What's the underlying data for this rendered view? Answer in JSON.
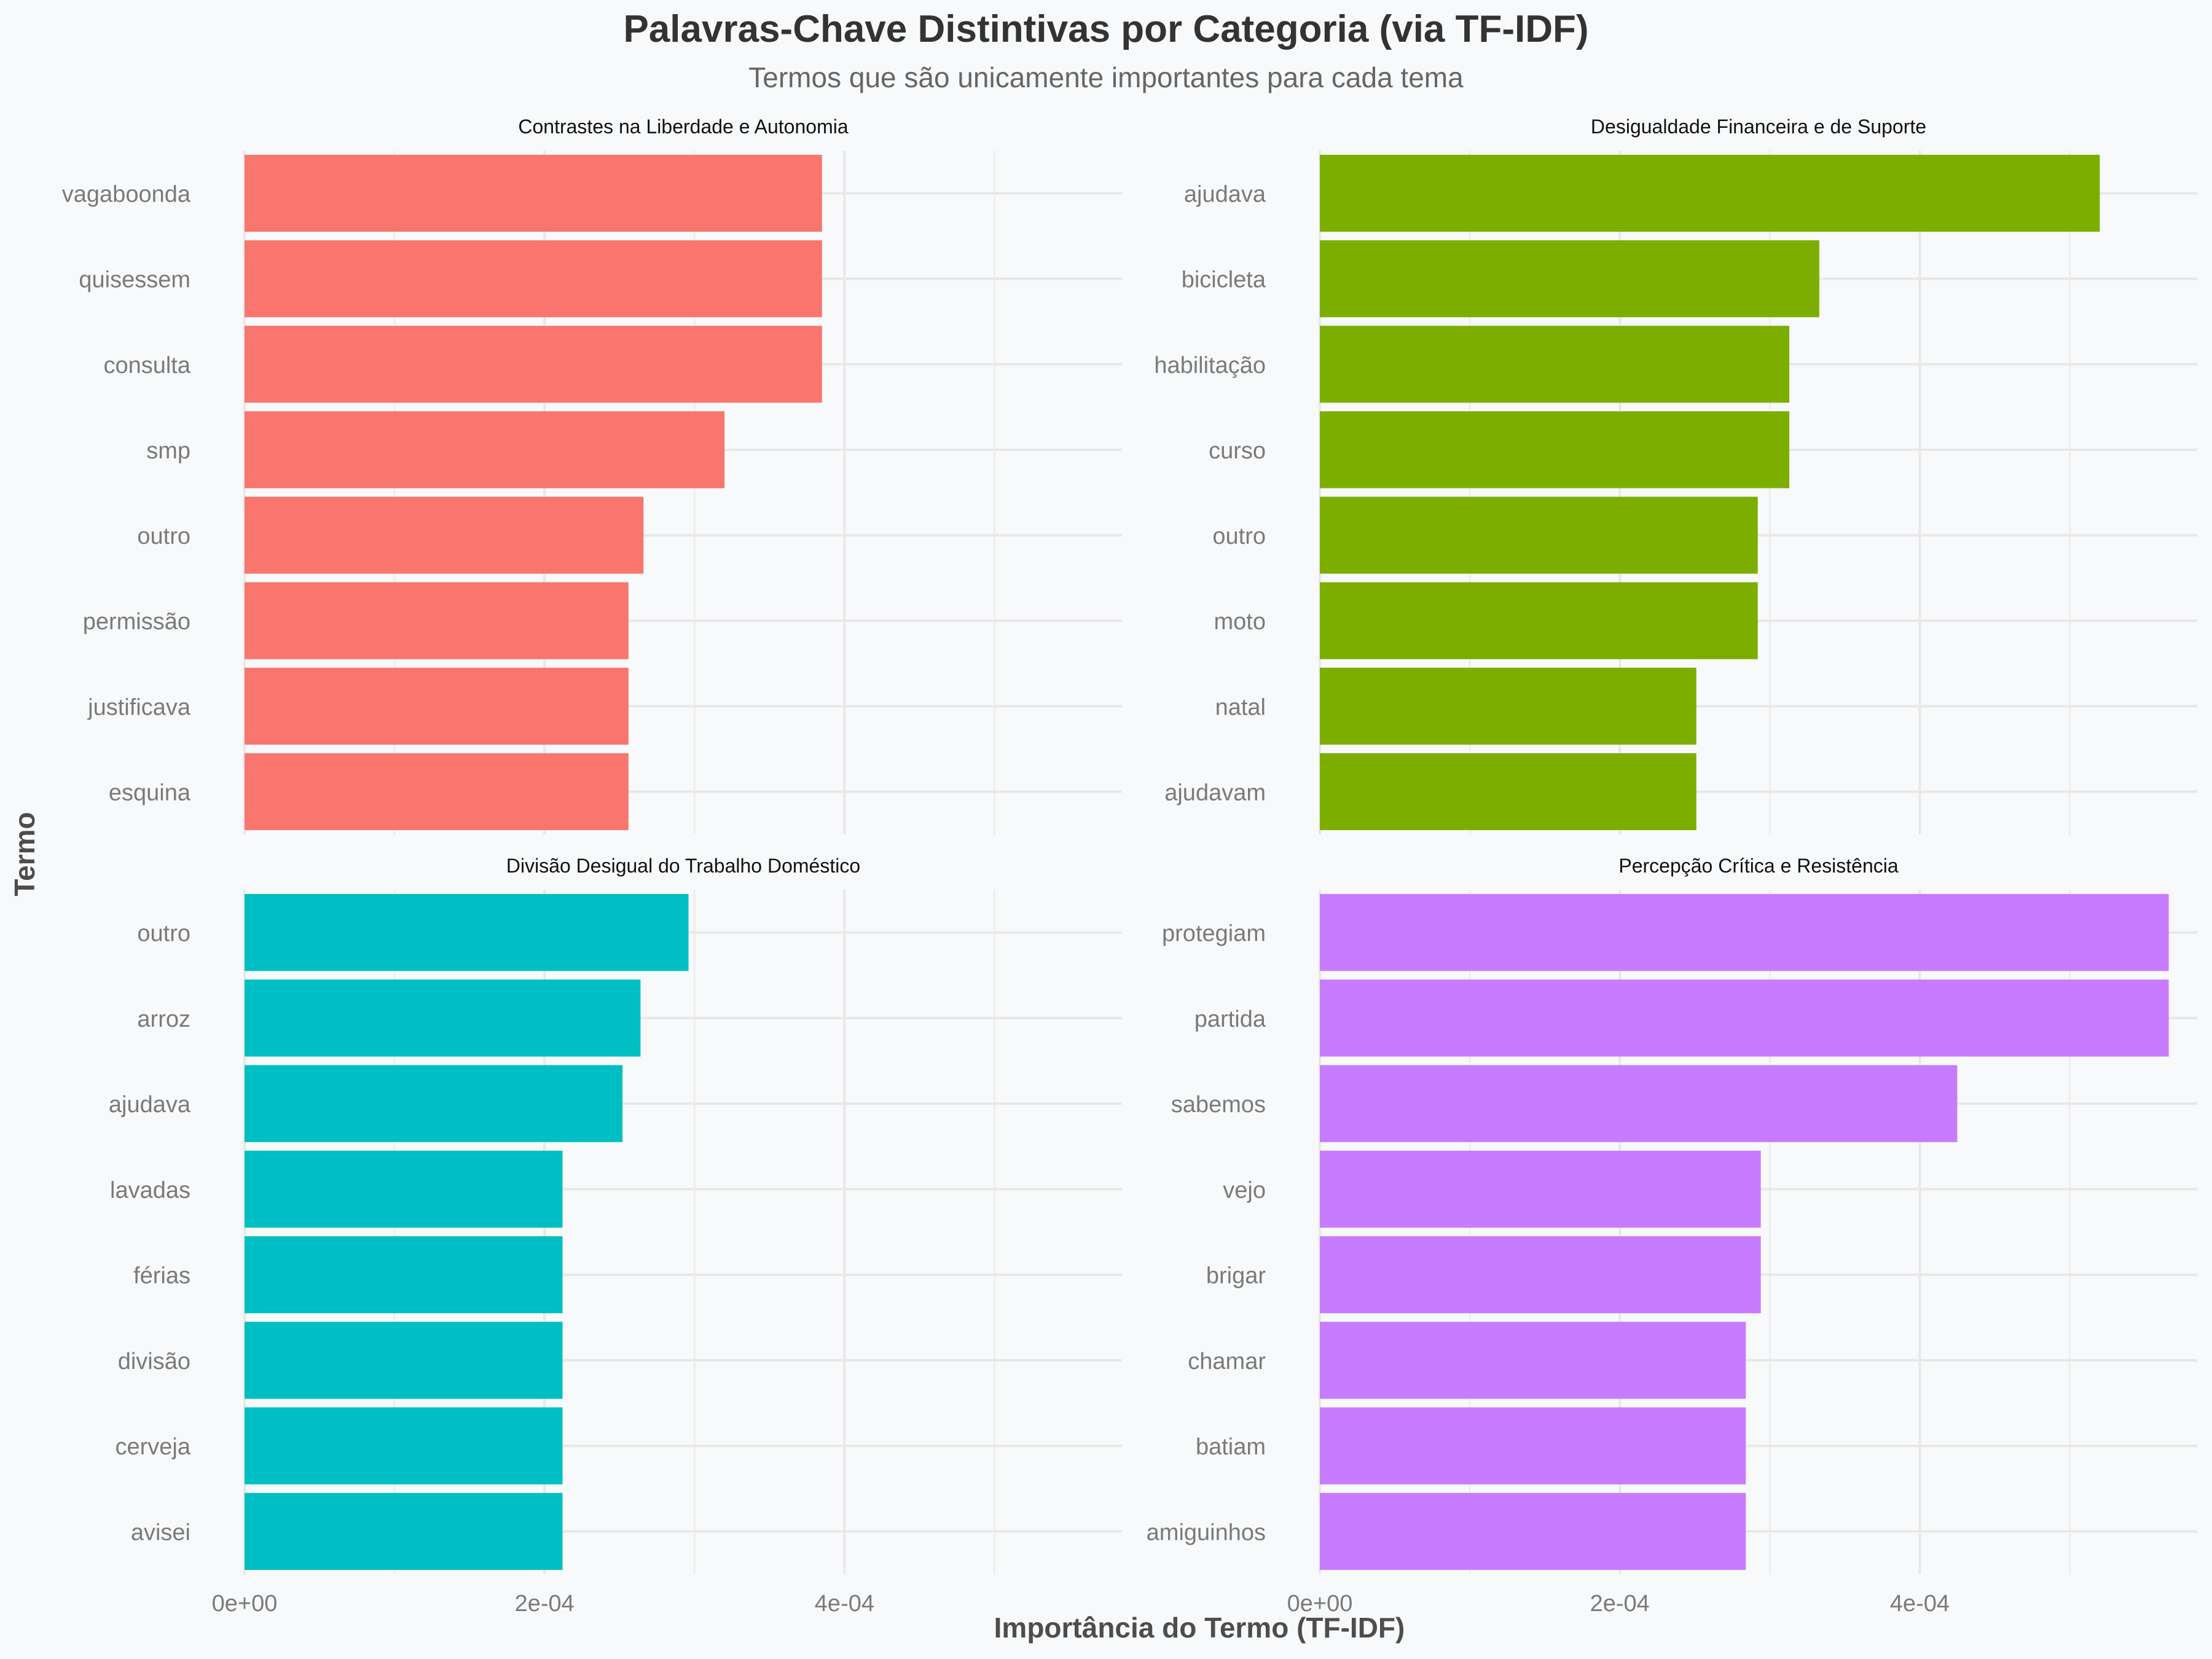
{
  "chart_data": {
    "type": "bar",
    "orientation": "horizontal",
    "title": "Palavras-Chave Distintivas por Categoria (via TF-IDF)",
    "subtitle": "Termos que são unicamente importantes para cada tema",
    "xlabel": "Importância do Termo (TF-IDF)",
    "ylabel": "Termo",
    "xlim": [
      0,
      0.000585
    ],
    "xticks": [
      0,
      0.0002,
      0.0004
    ],
    "xtick_labels": [
      "0e+00",
      "2e-04",
      "4e-04"
    ],
    "grid": true,
    "legend": "none",
    "facets": [
      {
        "title": "Contrastes na Liberdade e Autonomia",
        "color": "#F8766D",
        "categories": [
          "vagaboonda",
          "quisessem",
          "consulta",
          "smp",
          "outro",
          "permissão",
          "justificava",
          "esquina"
        ],
        "values": [
          0.000385,
          0.000385,
          0.000385,
          0.00032,
          0.000266,
          0.000256,
          0.000256,
          0.000256
        ]
      },
      {
        "title": "Desigualdade Financeira e de Suporte",
        "color": "#7CAE00",
        "categories": [
          "ajudava",
          "bicicleta",
          "habilitação",
          "curso",
          "outro",
          "moto",
          "natal",
          "ajudavam"
        ],
        "values": [
          0.00052,
          0.000333,
          0.000313,
          0.000313,
          0.000292,
          0.000292,
          0.000251,
          0.000251
        ]
      },
      {
        "title": "Divisão Desigual do Trabalho Doméstico",
        "color": "#00BFC4",
        "categories": [
          "outro",
          "arroz",
          "ajudava",
          "lavadas",
          "férias",
          "divisão",
          "cerveja",
          "avisei"
        ],
        "values": [
          0.000296,
          0.000264,
          0.000252,
          0.000212,
          0.000212,
          0.000212,
          0.000212,
          0.000212
        ]
      },
      {
        "title": "Percepção Crítica e Resistência",
        "color": "#C77CFF",
        "categories": [
          "protegiam",
          "partida",
          "sabemos",
          "vejo",
          "brigar",
          "chamar",
          "batiam",
          "amiguinhos"
        ],
        "values": [
          0.000566,
          0.000566,
          0.000425,
          0.000294,
          0.000294,
          0.000284,
          0.000284,
          0.000284
        ]
      }
    ]
  }
}
